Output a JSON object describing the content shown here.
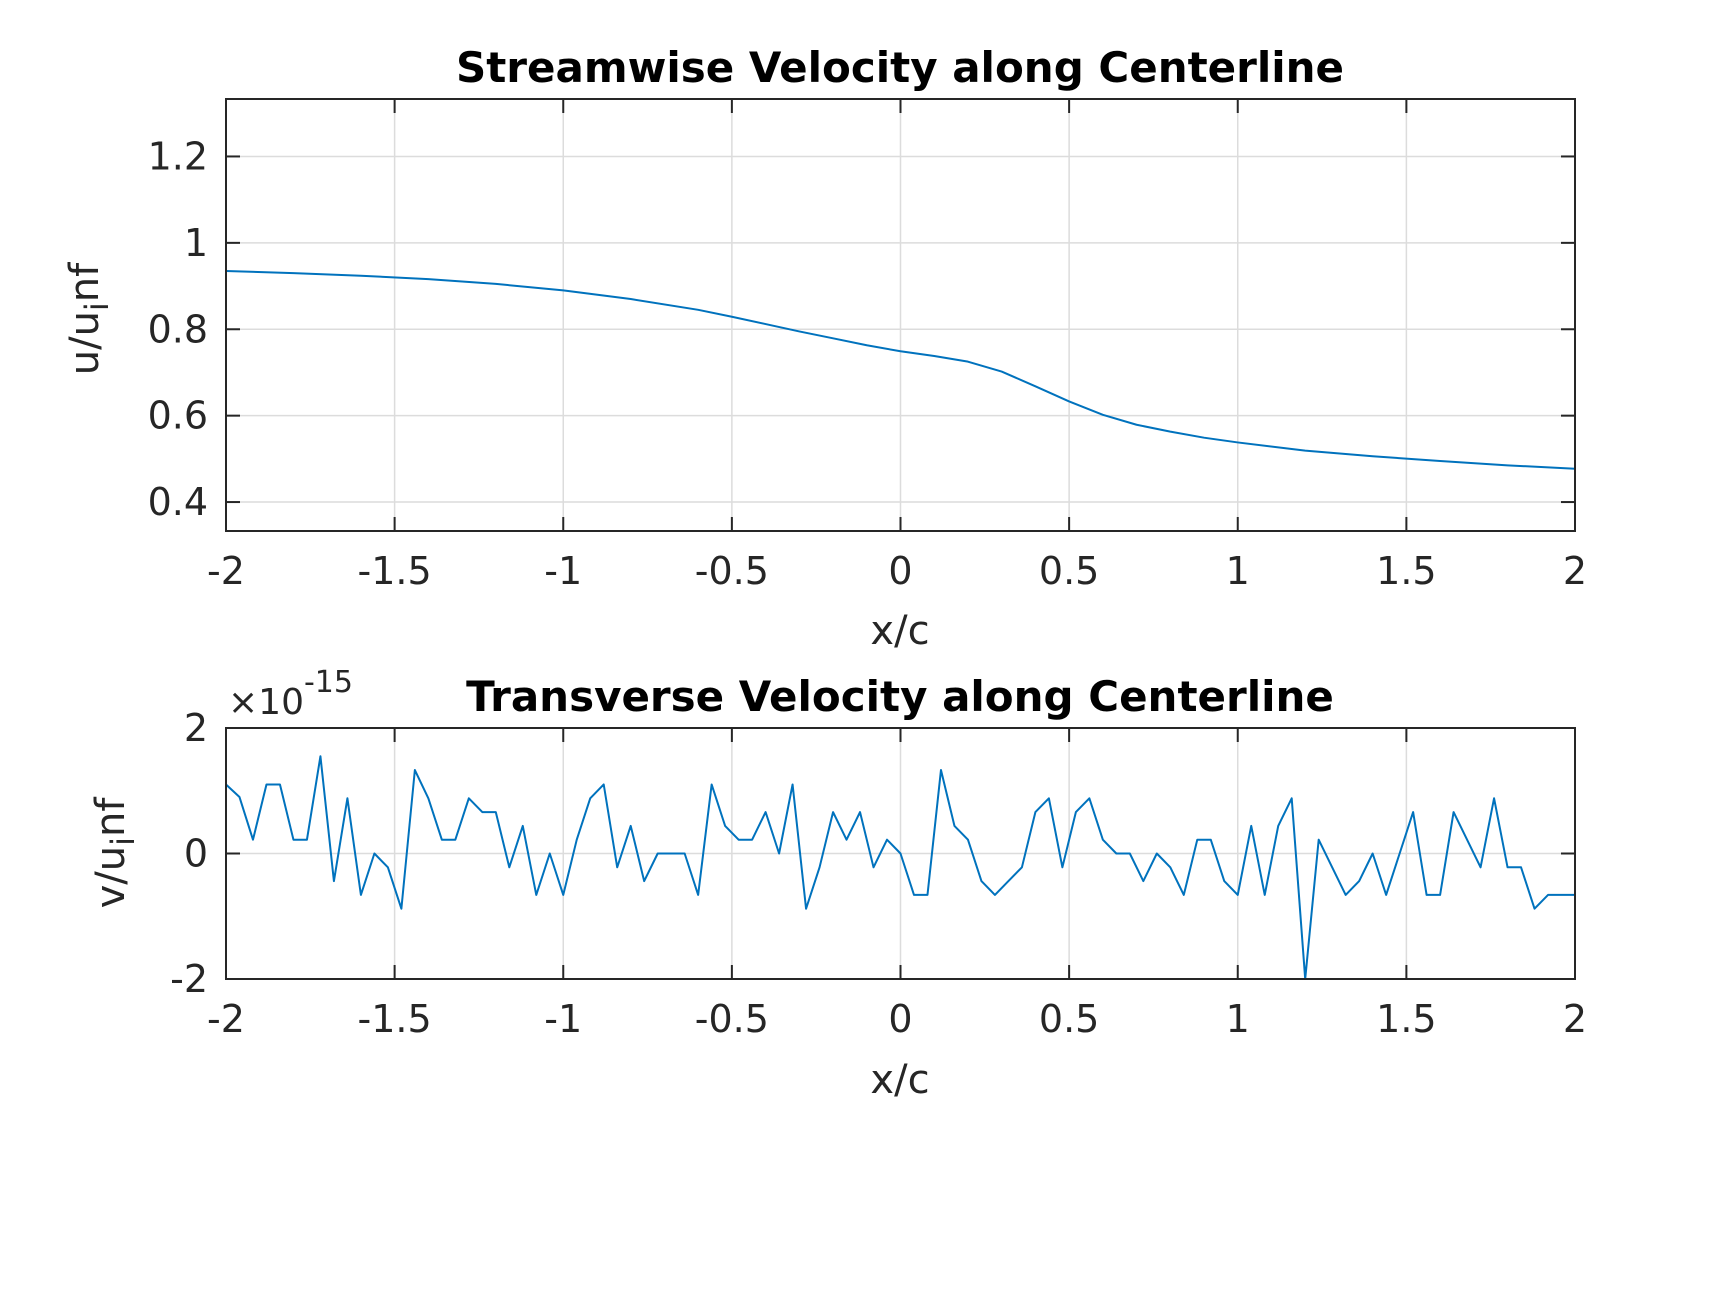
{
  "colors": {
    "series": "#0072bd",
    "axes": "#262626",
    "grid": "#dcdcdc"
  },
  "chart_data": [
    {
      "type": "line",
      "title": "Streamwise Velocity along Centerline",
      "xlabel": "x/c",
      "ylabel": "u/u_inf",
      "ylabel_text": {
        "main": "u/u",
        "sub": "i",
        "after": "nf"
      },
      "xlim": [
        -2,
        2
      ],
      "ylim": [
        0.333,
        1.333
      ],
      "xticks": [
        -2,
        -1.5,
        -1,
        -0.5,
        0,
        0.5,
        1,
        1.5,
        2
      ],
      "xtick_labels": [
        "-2",
        "-1.5",
        "-1",
        "-0.5",
        "0",
        "0.5",
        "1",
        "1.5",
        "2"
      ],
      "yticks": [
        0.4,
        0.6,
        0.8,
        1,
        1.2
      ],
      "ytick_labels": [
        "0.4",
        "0.6",
        "0.8",
        "1",
        "1.2"
      ],
      "grid": true,
      "legend": "none",
      "series": [
        {
          "x": [
            -2,
            -1.8,
            -1.6,
            -1.4,
            -1.2,
            -1.0,
            -0.8,
            -0.6,
            -0.5,
            -0.4,
            -0.3,
            -0.2,
            -0.1,
            0,
            0.1,
            0.2,
            0.3,
            0.4,
            0.5,
            0.6,
            0.7,
            0.8,
            0.9,
            1.0,
            1.2,
            1.4,
            1.6,
            1.8,
            2.0
          ],
          "y": [
            0.935,
            0.93,
            0.924,
            0.916,
            0.905,
            0.89,
            0.87,
            0.845,
            0.829,
            0.812,
            0.795,
            0.779,
            0.763,
            0.749,
            0.738,
            0.725,
            0.702,
            0.668,
            0.633,
            0.602,
            0.579,
            0.563,
            0.549,
            0.538,
            0.519,
            0.506,
            0.495,
            0.485,
            0.477
          ]
        }
      ]
    },
    {
      "type": "line",
      "title": "Transverse Velocity along Centerline",
      "xlabel": "x/c",
      "ylabel": "v/u_inf",
      "ylabel_text": {
        "main": "v/u",
        "sub": "i",
        "after": "nf"
      },
      "y_exponent": "×10",
      "y_exponent_power": "-15",
      "xlim": [
        -2,
        2
      ],
      "ylim": [
        -2,
        2
      ],
      "xticks": [
        -2,
        -1.5,
        -1,
        -0.5,
        0,
        0.5,
        1,
        1.5,
        2
      ],
      "xtick_labels": [
        "-2",
        "-1.5",
        "-1",
        "-0.5",
        "0",
        "0.5",
        "1",
        "1.5",
        "2"
      ],
      "yticks": [
        -2,
        0,
        2
      ],
      "ytick_labels": [
        "-2",
        "0",
        "2"
      ],
      "grid": true,
      "legend": "none",
      "series": [
        {
          "x": [
            -2.0,
            -1.96,
            -1.92,
            -1.88,
            -1.84,
            -1.8,
            -1.76,
            -1.72,
            -1.68,
            -1.64,
            -1.6,
            -1.56,
            -1.52,
            -1.48,
            -1.44,
            -1.4,
            -1.36,
            -1.32,
            -1.28,
            -1.24,
            -1.2,
            -1.16,
            -1.12,
            -1.08,
            -1.04,
            -1.0,
            -0.96,
            -0.92,
            -0.88,
            -0.84,
            -0.8,
            -0.76,
            -0.72,
            -0.68,
            -0.64,
            -0.6,
            -0.56,
            -0.52,
            -0.48,
            -0.44,
            -0.4,
            -0.36,
            -0.32,
            -0.28,
            -0.24,
            -0.2,
            -0.16,
            -0.12,
            -0.08,
            -0.04,
            0.0,
            0.04,
            0.08,
            0.12,
            0.16,
            0.2,
            0.24,
            0.28,
            0.32,
            0.36,
            0.4,
            0.44,
            0.48,
            0.52,
            0.56,
            0.6,
            0.64,
            0.68,
            0.72,
            0.76,
            0.8,
            0.84,
            0.88,
            0.92,
            0.96,
            1.0,
            1.04,
            1.08,
            1.12,
            1.16,
            1.2,
            1.24,
            1.28,
            1.32,
            1.36,
            1.4,
            1.44,
            1.48,
            1.52,
            1.56,
            1.6,
            1.64,
            1.68,
            1.72,
            1.76,
            1.8,
            1.84,
            1.88,
            1.92,
            1.96,
            2.0
          ],
          "y": [
            1.1,
            0.9,
            0.22,
            1.1,
            1.1,
            0.22,
            0.22,
            1.55,
            -0.44,
            0.88,
            -0.66,
            0.0,
            -0.22,
            -0.88,
            1.33,
            0.88,
            0.22,
            0.22,
            0.88,
            0.66,
            0.66,
            -0.22,
            0.44,
            -0.66,
            0.0,
            -0.66,
            0.22,
            0.88,
            1.1,
            -0.22,
            0.44,
            -0.44,
            0.0,
            0.0,
            0.0,
            -0.66,
            1.1,
            0.44,
            0.22,
            0.22,
            0.66,
            0.0,
            1.1,
            -0.88,
            -0.22,
            0.66,
            0.22,
            0.66,
            -0.22,
            0.22,
            0.0,
            -0.66,
            -0.66,
            1.33,
            0.44,
            0.22,
            -0.44,
            -0.66,
            -0.44,
            -0.22,
            0.66,
            0.88,
            -0.22,
            0.66,
            0.88,
            0.22,
            0.0,
            0.0,
            -0.44,
            0.0,
            -0.22,
            -0.66,
            0.22,
            0.22,
            -0.44,
            -0.66,
            0.44,
            -0.66,
            0.44,
            0.88,
            -2.0,
            0.22,
            -0.22,
            -0.66,
            -0.44,
            0.0,
            -0.66,
            0.0,
            0.66,
            -0.66,
            -0.66,
            0.66,
            0.22,
            -0.22,
            0.88,
            -0.22,
            -0.22,
            -0.88,
            -0.66,
            -0.66,
            -0.66
          ]
        }
      ]
    }
  ]
}
